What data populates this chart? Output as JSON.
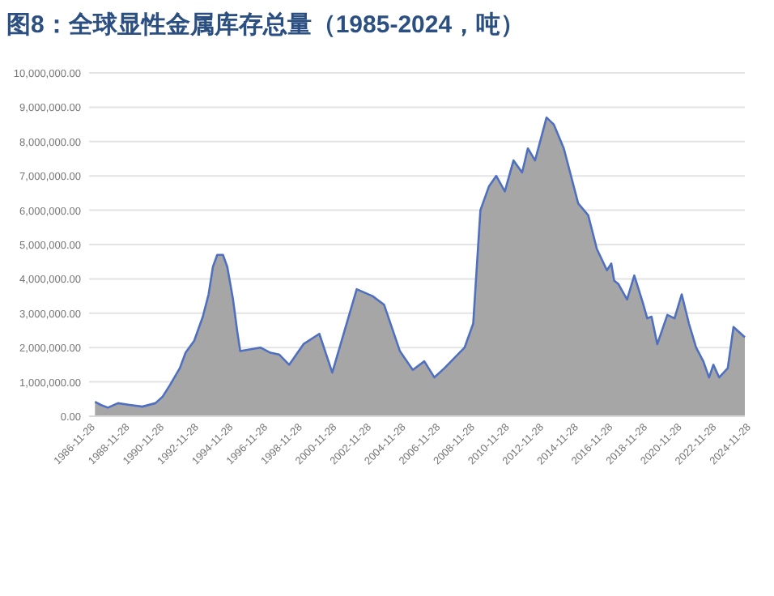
{
  "chart_data": {
    "type": "area",
    "title": "图8：全球显性金属库存总量（1985-2024，吨）",
    "x": [
      "1987-04",
      "1987-08",
      "1988-01",
      "1988-08",
      "1989-04",
      "1990-01",
      "1990-10",
      "1991-03",
      "1991-08",
      "1992-03",
      "1992-07",
      "1993-01",
      "1993-07",
      "1993-11",
      "1994-02",
      "1994-05",
      "1994-09",
      "1994-12",
      "1995-04",
      "1995-07",
      "1995-09",
      "1996-11",
      "1997-06",
      "1997-12",
      "1998-07",
      "1999-05",
      "2000-04",
      "2001-01",
      "2002-06",
      "2003-05",
      "2004-01",
      "2004-12",
      "2005-09",
      "2006-05",
      "2006-12",
      "2007-07",
      "2008-09",
      "2009-03",
      "2009-08",
      "2010-02",
      "2010-07",
      "2011-01",
      "2011-07",
      "2012-01",
      "2012-05",
      "2012-10",
      "2013-06",
      "2013-11",
      "2014-06",
      "2015-04",
      "2015-11",
      "2016-05",
      "2016-12",
      "2017-03",
      "2017-05",
      "2017-08",
      "2018-02",
      "2018-07",
      "2019-01",
      "2019-04",
      "2019-07",
      "2019-11",
      "2020-06",
      "2020-11",
      "2021-04",
      "2021-09",
      "2022-02",
      "2022-07",
      "2022-11",
      "2023-02",
      "2023-06",
      "2023-12",
      "2024-04",
      "2024-11-28"
    ],
    "series": [
      {
        "color": "#4f6fc0",
        "values": [
          420000,
          330000,
          250000,
          380000,
          330000,
          280000,
          380000,
          570000,
          900000,
          1400000,
          1850000,
          2200000,
          2900000,
          3550000,
          4350000,
          4700000,
          4700000,
          4350000,
          3400000,
          2450000,
          1900000,
          2000000,
          1850000,
          1800000,
          1500000,
          2100000,
          2400000,
          1270000,
          3700000,
          3500000,
          3250000,
          1900000,
          1350000,
          1600000,
          1130000,
          1400000,
          2000000,
          2700000,
          6000000,
          6700000,
          7000000,
          6550000,
          7450000,
          7100000,
          7800000,
          7450000,
          8700000,
          8500000,
          7800000,
          6200000,
          5850000,
          4870000,
          4250000,
          4450000,
          3950000,
          3850000,
          3400000,
          4100000,
          3300000,
          2850000,
          2900000,
          2100000,
          2950000,
          2850000,
          3550000,
          2700000,
          2000000,
          1600000,
          1130000,
          1500000,
          1130000,
          1400000,
          2600000,
          2300000
        ]
      }
    ],
    "xlim": [
      "1986-11-28",
      "2024-11-28"
    ],
    "xticks": [
      "1986-11-28",
      "1988-11-28",
      "1990-11-28",
      "1992-11-28",
      "1994-11-28",
      "1996-11-28",
      "1998-11-28",
      "2000-11-28",
      "2002-11-28",
      "2004-11-28",
      "2006-11-28",
      "2008-11-28",
      "2010-11-28",
      "2012-11-28",
      "2014-11-28",
      "2016-11-28",
      "2018-11-28",
      "2020-11-28",
      "2022-11-28",
      "2024-11-28"
    ],
    "ylim": [
      0,
      10000000
    ],
    "yticks": [
      {
        "value": 0,
        "label": "0.00"
      },
      {
        "value": 1000000,
        "label": "1,000,000.00"
      },
      {
        "value": 2000000,
        "label": "2,000,000.00"
      },
      {
        "value": 3000000,
        "label": "3,000,000.00"
      },
      {
        "value": 4000000,
        "label": "4,000,000.00"
      },
      {
        "value": 5000000,
        "label": "5,000,000.00"
      },
      {
        "value": 6000000,
        "label": "6,000,000.00"
      },
      {
        "value": 7000000,
        "label": "7,000,000.00"
      },
      {
        "value": 8000000,
        "label": "8,000,000.00"
      },
      {
        "value": 9000000,
        "label": "9,000,000.00"
      },
      {
        "value": 10000000,
        "label": "10,000,000.00"
      }
    ],
    "grid": "y"
  }
}
